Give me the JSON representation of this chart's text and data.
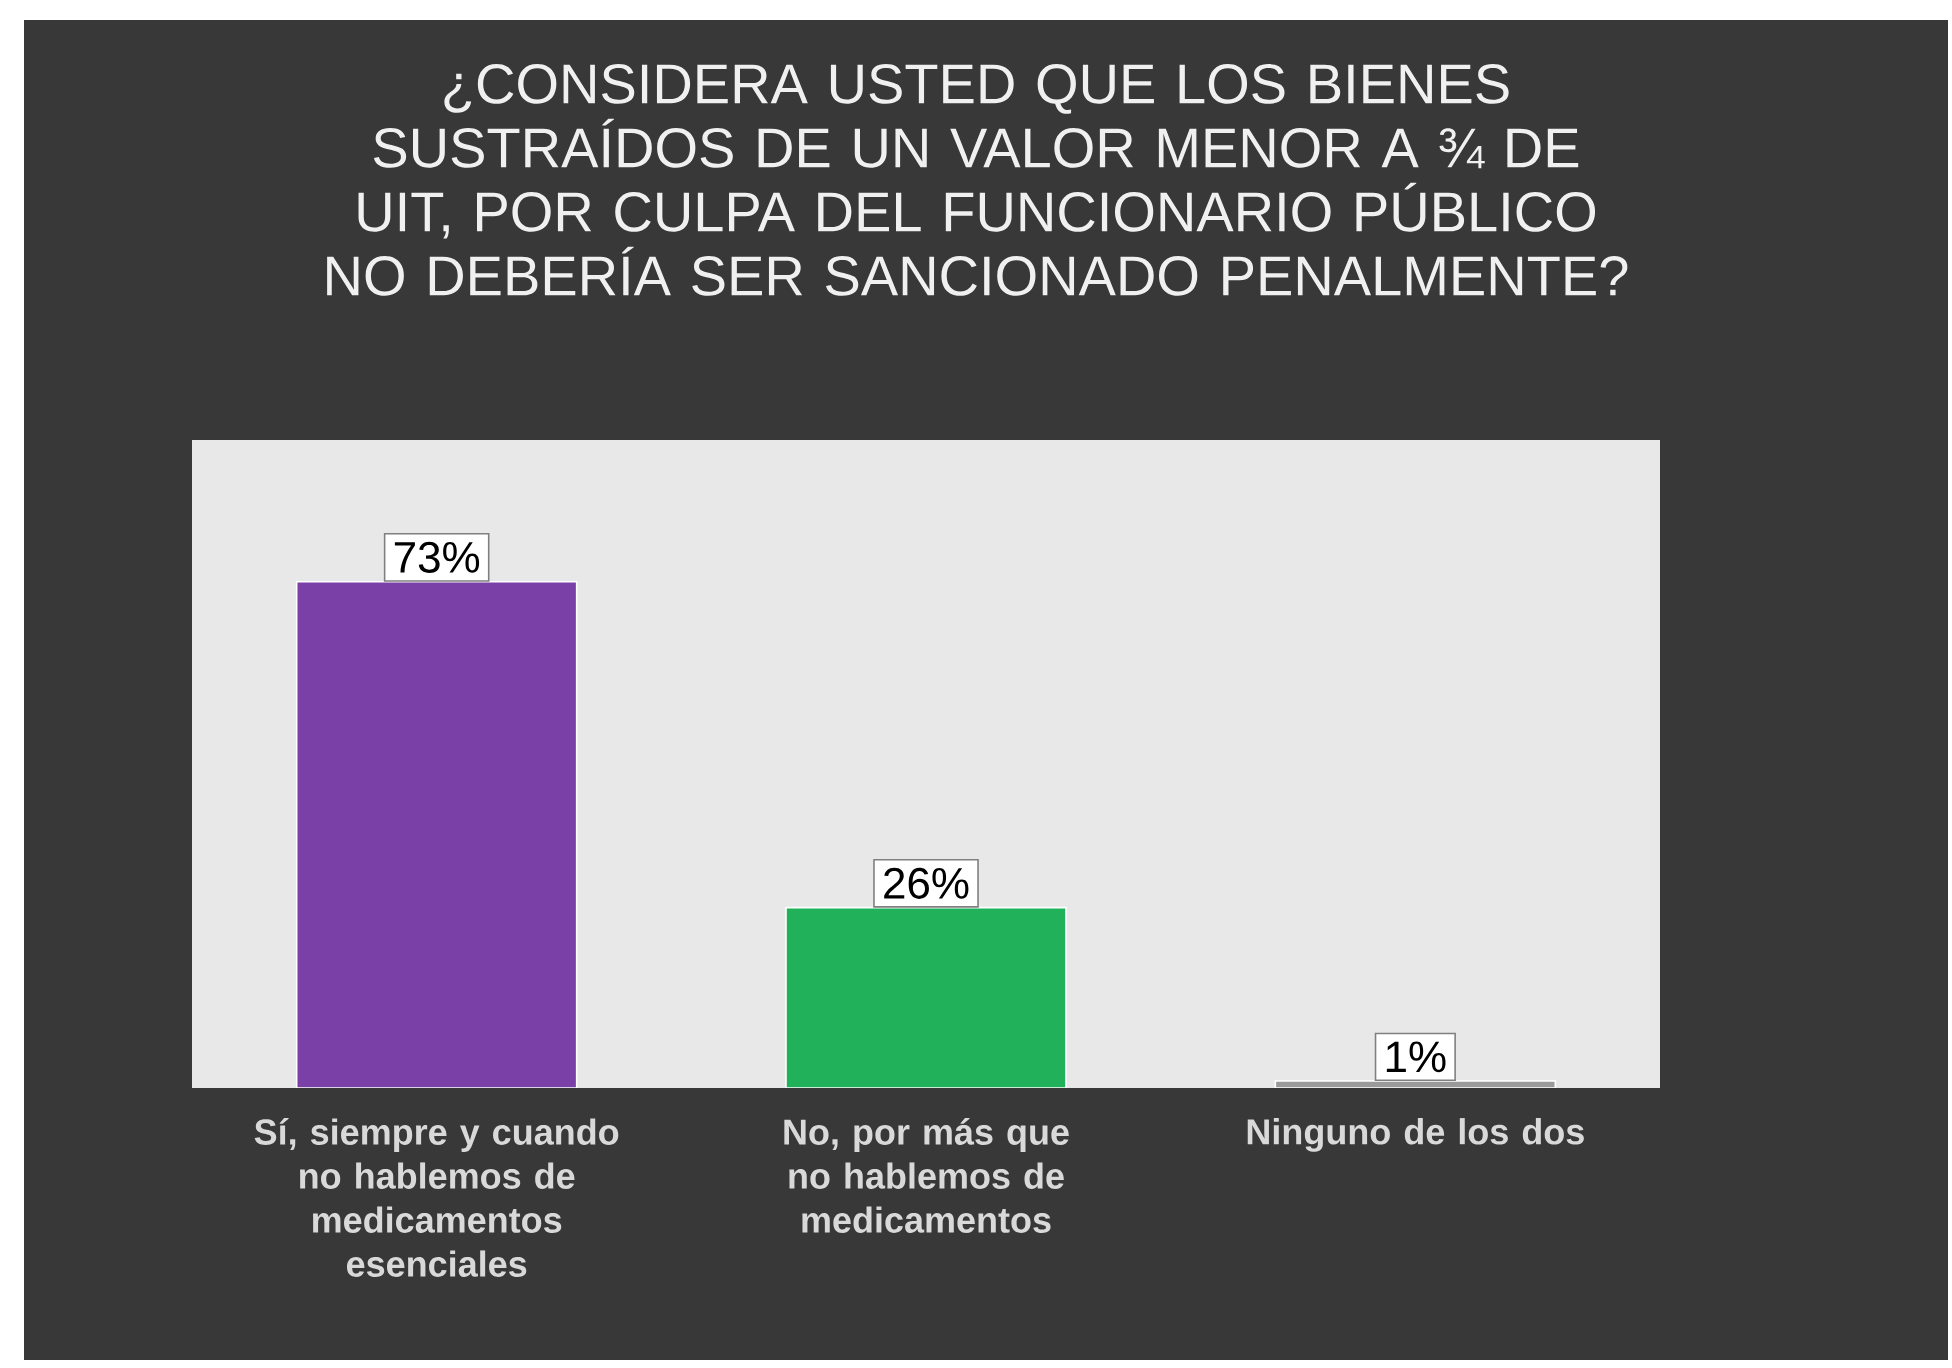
{
  "chart_data": {
    "type": "bar",
    "title": "¿CONSIDERA USTED QUE LOS BIENES SUSTRAÍDOS DE UN VALOR MENOR A ¾ DE UIT, POR CULPA DEL FUNCIONARIO PÚBLICO NO DEBERÍA SER SANCIONADO PENALMENTE?",
    "categories": [
      "Sí, siempre y cuando no hablemos de medicamentos esenciales",
      "No, por más que no hablemos de medicamentos",
      "Ninguno de los dos"
    ],
    "values": [
      73,
      26,
      1
    ],
    "colors": [
      "#7b3fa8",
      "#21b15a",
      "#9a9a9a"
    ],
    "value_labels": [
      "73%",
      "26%",
      "1%"
    ]
  }
}
